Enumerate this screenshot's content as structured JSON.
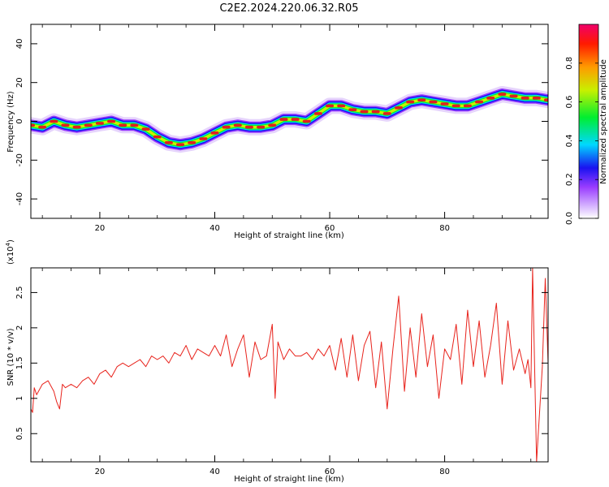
{
  "page_title": "C2E2.2024.220.06.32.R05",
  "colors": {
    "snr_line": "#e8231c",
    "ridge_core": "#e02020",
    "axis": "#000000",
    "colormap": [
      "#ffffff",
      "#d8b8ff",
      "#9a3dff",
      "#1a12f0",
      "#00d8ff",
      "#00ee30",
      "#c8f000",
      "#ff9a00",
      "#ff1a00",
      "#f0006a"
    ]
  },
  "chart_data": [
    {
      "type": "heatmap",
      "title": "",
      "xlabel": "Height of straight line (km)",
      "ylabel": "Frequency (Hz)",
      "xlim": [
        8,
        98
      ],
      "ylim": [
        -50,
        50
      ],
      "x_ticks": [
        20,
        40,
        60,
        80
      ],
      "y_ticks": [
        -40,
        -20,
        0,
        20,
        40
      ],
      "grid": false,
      "colorbar": {
        "label": "Normalized spectral amplitude",
        "range": [
          0.0,
          1.0
        ],
        "ticks": [
          0.0,
          0.2,
          0.4,
          0.6,
          0.8
        ]
      },
      "ridge": {
        "x": [
          8,
          10,
          12,
          14,
          16,
          18,
          20,
          22,
          24,
          26,
          28,
          30,
          32,
          34,
          36,
          38,
          40,
          42,
          44,
          46,
          48,
          50,
          52,
          54,
          56,
          58,
          60,
          62,
          64,
          66,
          68,
          70,
          72,
          74,
          76,
          78,
          80,
          82,
          84,
          86,
          88,
          90,
          92,
          94,
          96,
          98
        ],
        "freq": [
          -2,
          -3,
          0,
          -2,
          -3,
          -2,
          -1,
          0,
          -2,
          -2,
          -4,
          -8,
          -11,
          -12,
          -11,
          -9,
          -6,
          -3,
          -2,
          -3,
          -3,
          -2,
          1,
          1,
          0,
          4,
          8,
          8,
          6,
          5,
          5,
          4,
          7,
          10,
          11,
          10,
          9,
          8,
          8,
          10,
          12,
          14,
          13,
          12,
          12,
          11
        ]
      }
    },
    {
      "type": "line",
      "title": "",
      "xlabel": "Height of straight line (km)",
      "ylabel": "SNR (10 * v/v)",
      "y_scale_label": "(x10",
      "y_scale_exponent": "4",
      "y_scale_suffix": ")",
      "xlim": [
        8,
        98
      ],
      "ylim": [
        0.1,
        2.85
      ],
      "x_ticks": [
        20,
        40,
        60,
        80
      ],
      "y_ticks": [
        0.5,
        1.0,
        1.5,
        2.0,
        2.5
      ],
      "grid": false,
      "series": [
        {
          "x": [
            8,
            8.3,
            8.6,
            9,
            10,
            11,
            12,
            12.5,
            13,
            13.5,
            14,
            15,
            16,
            17,
            18,
            19,
            20,
            21,
            22,
            23,
            24,
            25,
            26,
            27,
            28,
            29,
            30,
            31,
            32,
            33,
            34,
            35,
            36,
            37,
            38,
            39,
            40,
            41,
            42,
            43,
            44,
            45,
            46,
            47,
            48,
            49,
            50,
            50.5,
            51,
            52,
            53,
            54,
            55,
            56,
            57,
            58,
            59,
            60,
            61,
            62,
            63,
            64,
            65,
            66,
            67,
            68,
            69,
            70,
            71,
            72,
            73,
            74,
            75,
            76,
            77,
            78,
            79,
            80,
            81,
            82,
            83,
            84,
            85,
            86,
            87,
            88,
            89,
            90,
            91,
            92,
            93,
            94,
            94.5,
            95,
            95.3,
            96,
            97,
            97.5,
            98
          ],
          "y": [
            0.85,
            0.8,
            1.15,
            1.05,
            1.2,
            1.25,
            1.1,
            0.95,
            0.85,
            1.2,
            1.15,
            1.2,
            1.15,
            1.25,
            1.3,
            1.2,
            1.35,
            1.4,
            1.3,
            1.45,
            1.5,
            1.45,
            1.5,
            1.55,
            1.45,
            1.6,
            1.55,
            1.6,
            1.5,
            1.65,
            1.6,
            1.75,
            1.55,
            1.7,
            1.65,
            1.6,
            1.75,
            1.6,
            1.9,
            1.45,
            1.7,
            1.9,
            1.3,
            1.8,
            1.55,
            1.6,
            2.05,
            1.0,
            1.8,
            1.55,
            1.7,
            1.6,
            1.6,
            1.65,
            1.55,
            1.7,
            1.6,
            1.75,
            1.4,
            1.85,
            1.3,
            1.9,
            1.25,
            1.75,
            1.95,
            1.15,
            1.8,
            0.85,
            1.7,
            2.45,
            1.1,
            2.0,
            1.3,
            2.2,
            1.45,
            1.9,
            1.0,
            1.7,
            1.55,
            2.05,
            1.2,
            2.25,
            1.45,
            2.1,
            1.3,
            1.75,
            2.35,
            1.2,
            2.1,
            1.4,
            1.7,
            1.35,
            1.55,
            1.15,
            2.85,
            0.1,
            1.45,
            2.7,
            1.5
          ]
        }
      ]
    }
  ]
}
